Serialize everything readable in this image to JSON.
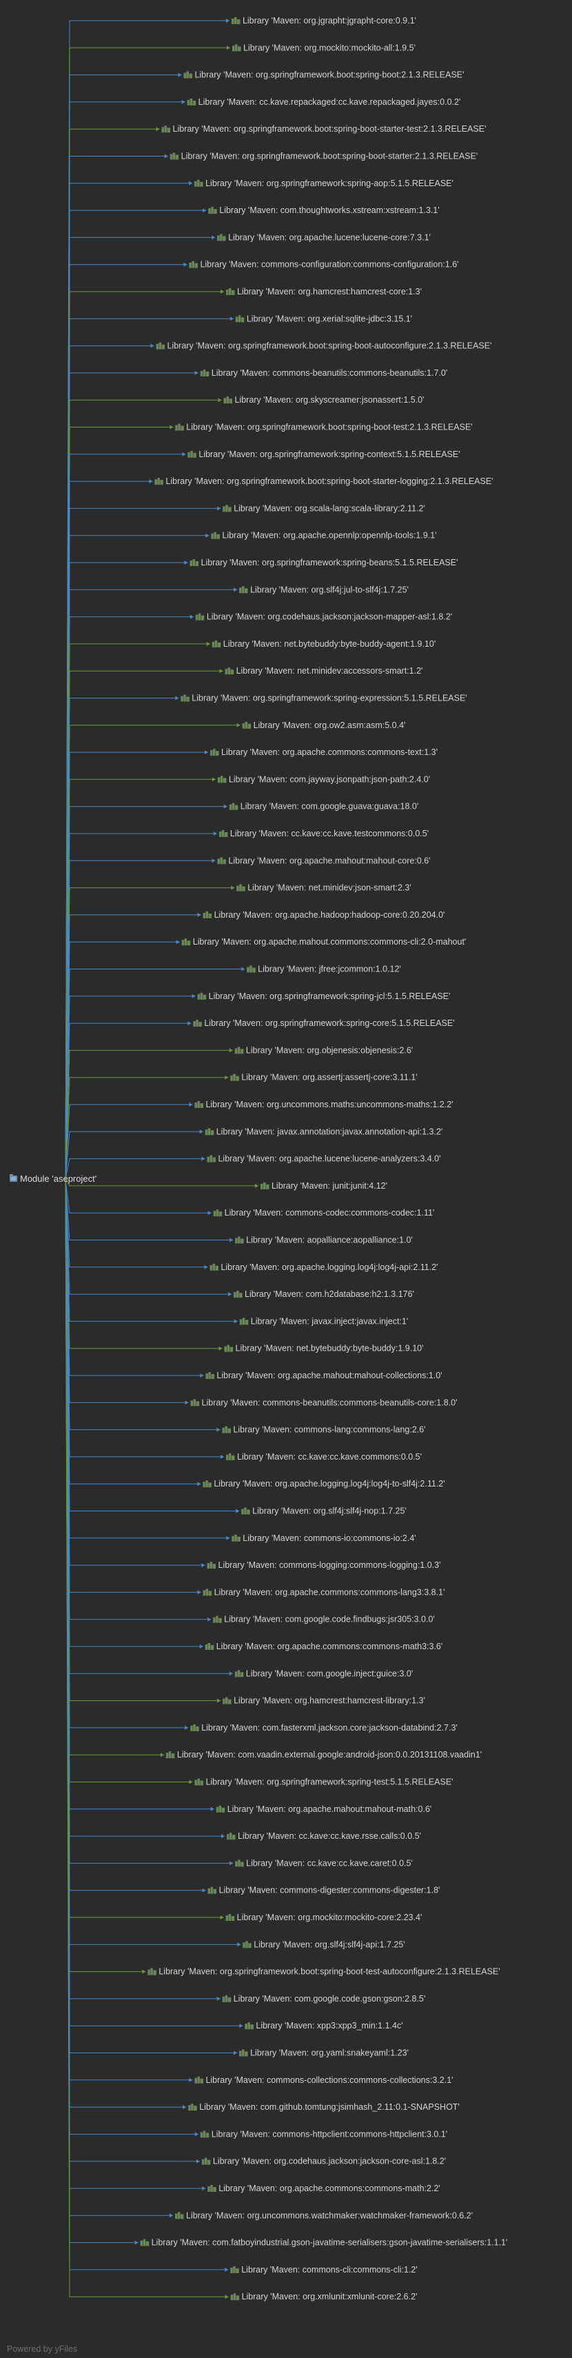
{
  "colors": {
    "background": "#2b2b2b",
    "edge_blue": "#4a88c7",
    "edge_green": "#6a9a3c",
    "icon": "#6a8759",
    "text": "#d4d4d4",
    "footer": "#6e6e6e"
  },
  "module": {
    "label": "Module 'aseproject'",
    "icon": "module-icon"
  },
  "library_icon": "library-books-icon",
  "libraries": [
    {
      "label": "Library 'Maven: org.jgrapht:jgrapht-core:0.9.1'",
      "edge": "blue"
    },
    {
      "label": "Library 'Maven: org.mockito:mockito-all:1.9.5'",
      "edge": "green"
    },
    {
      "label": "Library 'Maven: org.springframework.boot:spring-boot:2.1.3.RELEASE'",
      "edge": "blue"
    },
    {
      "label": "Library 'Maven: cc.kave.repackaged:cc.kave.repackaged.jayes:0.0.2'",
      "edge": "blue"
    },
    {
      "label": "Library 'Maven: org.springframework.boot:spring-boot-starter-test:2.1.3.RELEASE'",
      "edge": "green"
    },
    {
      "label": "Library 'Maven: org.springframework.boot:spring-boot-starter:2.1.3.RELEASE'",
      "edge": "blue"
    },
    {
      "label": "Library 'Maven: org.springframework:spring-aop:5.1.5.RELEASE'",
      "edge": "blue"
    },
    {
      "label": "Library 'Maven: com.thoughtworks.xstream:xstream:1.3.1'",
      "edge": "blue"
    },
    {
      "label": "Library 'Maven: org.apache.lucene:lucene-core:7.3.1'",
      "edge": "blue"
    },
    {
      "label": "Library 'Maven: commons-configuration:commons-configuration:1.6'",
      "edge": "blue"
    },
    {
      "label": "Library 'Maven: org.hamcrest:hamcrest-core:1.3'",
      "edge": "green"
    },
    {
      "label": "Library 'Maven: org.xerial:sqlite-jdbc:3.15.1'",
      "edge": "blue"
    },
    {
      "label": "Library 'Maven: org.springframework.boot:spring-boot-autoconfigure:2.1.3.RELEASE'",
      "edge": "blue"
    },
    {
      "label": "Library 'Maven: commons-beanutils:commons-beanutils:1.7.0'",
      "edge": "blue"
    },
    {
      "label": "Library 'Maven: org.skyscreamer:jsonassert:1.5.0'",
      "edge": "green"
    },
    {
      "label": "Library 'Maven: org.springframework.boot:spring-boot-test:2.1.3.RELEASE'",
      "edge": "green"
    },
    {
      "label": "Library 'Maven: org.springframework:spring-context:5.1.5.RELEASE'",
      "edge": "blue"
    },
    {
      "label": "Library 'Maven: org.springframework.boot:spring-boot-starter-logging:2.1.3.RELEASE'",
      "edge": "blue"
    },
    {
      "label": "Library 'Maven: org.scala-lang:scala-library:2.11.2'",
      "edge": "blue"
    },
    {
      "label": "Library 'Maven: org.apache.opennlp:opennlp-tools:1.9.1'",
      "edge": "blue"
    },
    {
      "label": "Library 'Maven: org.springframework:spring-beans:5.1.5.RELEASE'",
      "edge": "blue"
    },
    {
      "label": "Library 'Maven: org.slf4j:jul-to-slf4j:1.7.25'",
      "edge": "blue"
    },
    {
      "label": "Library 'Maven: org.codehaus.jackson:jackson-mapper-asl:1.8.2'",
      "edge": "blue"
    },
    {
      "label": "Library 'Maven: net.bytebuddy:byte-buddy-agent:1.9.10'",
      "edge": "green"
    },
    {
      "label": "Library 'Maven: net.minidev:accessors-smart:1.2'",
      "edge": "green"
    },
    {
      "label": "Library 'Maven: org.springframework:spring-expression:5.1.5.RELEASE'",
      "edge": "blue"
    },
    {
      "label": "Library 'Maven: org.ow2.asm:asm:5.0.4'",
      "edge": "green"
    },
    {
      "label": "Library 'Maven: org.apache.commons:commons-text:1.3'",
      "edge": "blue"
    },
    {
      "label": "Library 'Maven: com.jayway.jsonpath:json-path:2.4.0'",
      "edge": "green"
    },
    {
      "label": "Library 'Maven: com.google.guava:guava:18.0'",
      "edge": "blue"
    },
    {
      "label": "Library 'Maven: cc.kave:cc.kave.testcommons:0.0.5'",
      "edge": "blue"
    },
    {
      "label": "Library 'Maven: org.apache.mahout:mahout-core:0.6'",
      "edge": "blue"
    },
    {
      "label": "Library 'Maven: net.minidev:json-smart:2.3'",
      "edge": "green"
    },
    {
      "label": "Library 'Maven: org.apache.hadoop:hadoop-core:0.20.204.0'",
      "edge": "blue"
    },
    {
      "label": "Library 'Maven: org.apache.mahout.commons:commons-cli:2.0-mahout'",
      "edge": "blue"
    },
    {
      "label": "Library 'Maven: jfree:jcommon:1.0.12'",
      "edge": "blue"
    },
    {
      "label": "Library 'Maven: org.springframework:spring-jcl:5.1.5.RELEASE'",
      "edge": "blue"
    },
    {
      "label": "Library 'Maven: org.springframework:spring-core:5.1.5.RELEASE'",
      "edge": "blue"
    },
    {
      "label": "Library 'Maven: org.objenesis:objenesis:2.6'",
      "edge": "green"
    },
    {
      "label": "Library 'Maven: org.assertj:assertj-core:3.11.1'",
      "edge": "green"
    },
    {
      "label": "Library 'Maven: org.uncommons.maths:uncommons-maths:1.2.2'",
      "edge": "blue"
    },
    {
      "label": "Library 'Maven: javax.annotation:javax.annotation-api:1.3.2'",
      "edge": "blue"
    },
    {
      "label": "Library 'Maven: org.apache.lucene:lucene-analyzers:3.4.0'",
      "edge": "blue"
    },
    {
      "label": "Library 'Maven: junit:junit:4.12'",
      "edge": "green"
    },
    {
      "label": "Library 'Maven: commons-codec:commons-codec:1.11'",
      "edge": "blue"
    },
    {
      "label": "Library 'Maven: aopalliance:aopalliance:1.0'",
      "edge": "blue"
    },
    {
      "label": "Library 'Maven: org.apache.logging.log4j:log4j-api:2.11.2'",
      "edge": "blue"
    },
    {
      "label": "Library 'Maven: com.h2database:h2:1.3.176'",
      "edge": "blue"
    },
    {
      "label": "Library 'Maven: javax.inject:javax.inject:1'",
      "edge": "blue"
    },
    {
      "label": "Library 'Maven: net.bytebuddy:byte-buddy:1.9.10'",
      "edge": "green"
    },
    {
      "label": "Library 'Maven: org.apache.mahout:mahout-collections:1.0'",
      "edge": "blue"
    },
    {
      "label": "Library 'Maven: commons-beanutils:commons-beanutils-core:1.8.0'",
      "edge": "blue"
    },
    {
      "label": "Library 'Maven: commons-lang:commons-lang:2.6'",
      "edge": "blue"
    },
    {
      "label": "Library 'Maven: cc.kave:cc.kave.commons:0.0.5'",
      "edge": "blue"
    },
    {
      "label": "Library 'Maven: org.apache.logging.log4j:log4j-to-slf4j:2.11.2'",
      "edge": "blue"
    },
    {
      "label": "Library 'Maven: org.slf4j:slf4j-nop:1.7.25'",
      "edge": "blue"
    },
    {
      "label": "Library 'Maven: commons-io:commons-io:2.4'",
      "edge": "blue"
    },
    {
      "label": "Library 'Maven: commons-logging:commons-logging:1.0.3'",
      "edge": "blue"
    },
    {
      "label": "Library 'Maven: org.apache.commons:commons-lang3:3.8.1'",
      "edge": "blue"
    },
    {
      "label": "Library 'Maven: com.google.code.findbugs:jsr305:3.0.0'",
      "edge": "blue"
    },
    {
      "label": "Library 'Maven: org.apache.commons:commons-math3:3.6'",
      "edge": "blue"
    },
    {
      "label": "Library 'Maven: com.google.inject:guice:3.0'",
      "edge": "blue"
    },
    {
      "label": "Library 'Maven: org.hamcrest:hamcrest-library:1.3'",
      "edge": "green"
    },
    {
      "label": "Library 'Maven: com.fasterxml.jackson.core:jackson-databind:2.7.3'",
      "edge": "blue"
    },
    {
      "label": "Library 'Maven: com.vaadin.external.google:android-json:0.0.20131108.vaadin1'",
      "edge": "green"
    },
    {
      "label": "Library 'Maven: org.springframework:spring-test:5.1.5.RELEASE'",
      "edge": "green"
    },
    {
      "label": "Library 'Maven: org.apache.mahout:mahout-math:0.6'",
      "edge": "blue"
    },
    {
      "label": "Library 'Maven: cc.kave:cc.kave.rsse.calls:0.0.5'",
      "edge": "blue"
    },
    {
      "label": "Library 'Maven: cc.kave:cc.kave.caret:0.0.5'",
      "edge": "blue"
    },
    {
      "label": "Library 'Maven: commons-digester:commons-digester:1.8'",
      "edge": "blue"
    },
    {
      "label": "Library 'Maven: org.mockito:mockito-core:2.23.4'",
      "edge": "green"
    },
    {
      "label": "Library 'Maven: org.slf4j:slf4j-api:1.7.25'",
      "edge": "blue"
    },
    {
      "label": "Library 'Maven: org.springframework.boot:spring-boot-test-autoconfigure:2.1.3.RELEASE'",
      "edge": "green"
    },
    {
      "label": "Library 'Maven: com.google.code.gson:gson:2.8.5'",
      "edge": "blue"
    },
    {
      "label": "Library 'Maven: xpp3:xpp3_min:1.1.4c'",
      "edge": "blue"
    },
    {
      "label": "Library 'Maven: org.yaml:snakeyaml:1.23'",
      "edge": "blue"
    },
    {
      "label": "Library 'Maven: commons-collections:commons-collections:3.2.1'",
      "edge": "blue"
    },
    {
      "label": "Library 'Maven: com.github.tomtung:jsimhash_2.11:0.1-SNAPSHOT'",
      "edge": "blue"
    },
    {
      "label": "Library 'Maven: commons-httpclient:commons-httpclient:3.0.1'",
      "edge": "blue"
    },
    {
      "label": "Library 'Maven: org.codehaus.jackson:jackson-core-asl:1.8.2'",
      "edge": "blue"
    },
    {
      "label": "Library 'Maven: org.apache.commons:commons-math:2.2'",
      "edge": "blue"
    },
    {
      "label": "Library 'Maven: org.uncommons.watchmaker:watchmaker-framework:0.6.2'",
      "edge": "blue"
    },
    {
      "label": "Library 'Maven: com.fatboyindustrial.gson-javatime-serialisers:gson-javatime-serialisers:1.1.1'",
      "edge": "blue"
    },
    {
      "label": "Library 'Maven: commons-cli:commons-cli:1.2'",
      "edge": "blue"
    },
    {
      "label": "Library 'Maven: org.xmlunit:xmlunit-core:2.6.2'",
      "edge": "green"
    }
  ],
  "footer": {
    "text": "Powered by yFiles"
  }
}
